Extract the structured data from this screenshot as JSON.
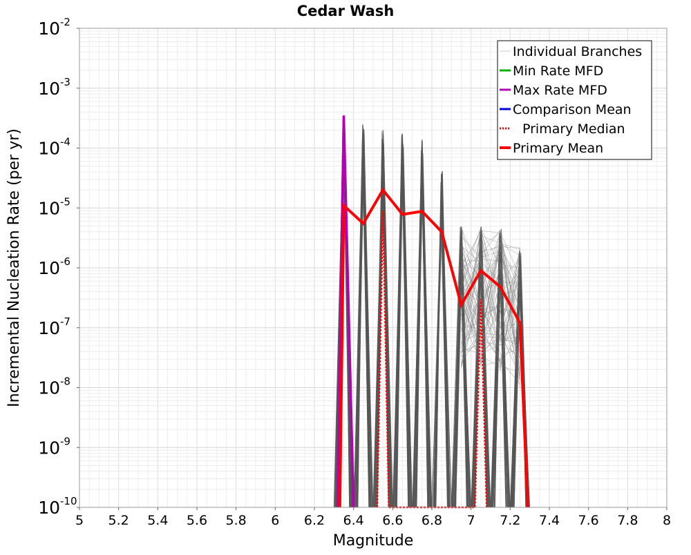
{
  "chart_data": {
    "type": "line",
    "title": "Cedar Wash",
    "xlabel": "Magnitude",
    "ylabel": "Incremental Nucleation Rate (per yr)",
    "xlim": [
      5,
      8
    ],
    "ylim": [
      1e-10,
      0.01
    ],
    "yscale": "log",
    "grid": true,
    "x_ticks": [
      "5",
      "5.2",
      "5.4",
      "5.6",
      "5.8",
      "6",
      "6.2",
      "6.4",
      "6.6",
      "6.8",
      "7",
      "7.2",
      "7.4",
      "7.6",
      "7.8",
      "8"
    ],
    "y_ticks": [
      {
        "base": "10",
        "exp": "-10"
      },
      {
        "base": "10",
        "exp": "-9"
      },
      {
        "base": "10",
        "exp": "-8"
      },
      {
        "base": "10",
        "exp": "-7"
      },
      {
        "base": "10",
        "exp": "-6"
      },
      {
        "base": "10",
        "exp": "-5"
      },
      {
        "base": "10",
        "exp": "-4"
      },
      {
        "base": "10",
        "exp": "-3"
      },
      {
        "base": "10",
        "exp": "-2"
      }
    ],
    "legend_position": "top-right",
    "legend": [
      {
        "label": "Individual Branches",
        "color": "#c8c8c8",
        "style": "solid-thin"
      },
      {
        "label": "Min Rate MFD",
        "color": "#00b400",
        "style": "solid"
      },
      {
        "label": "Max Rate MFD",
        "color": "#b400b4",
        "style": "solid"
      },
      {
        "label": "Comparison Mean",
        "color": "#0000dd",
        "style": "solid"
      },
      {
        "label": "Primary Median",
        "color": "#ff0000",
        "style": "dotted"
      },
      {
        "label": "Primary Mean",
        "color": "#ff0000",
        "style": "solid-thick"
      }
    ],
    "series": [
      {
        "name": "Primary Mean",
        "color": "#ff0000",
        "x": [
          6.33,
          6.35,
          6.45,
          6.55,
          6.65,
          6.75,
          6.85,
          6.95,
          7.05,
          7.15,
          7.25,
          7.29
        ],
        "y": [
          1e-10,
          1.1e-05,
          5.5e-06,
          2e-05,
          7.8e-06,
          8.8e-06,
          4e-06,
          2.4e-07,
          9e-07,
          4.8e-07,
          1.2e-07,
          1e-10
        ]
      },
      {
        "name": "Primary Median",
        "color": "#ff0000",
        "x": [
          6.52,
          6.55,
          6.58,
          7.02,
          7.05,
          7.08
        ],
        "y": [
          1e-10,
          9e-06,
          1e-10,
          1e-10,
          3e-07,
          1e-10
        ]
      },
      {
        "name": "Max Rate MFD",
        "color": "#b400b4",
        "x": [
          6.32,
          6.35,
          6.4
        ],
        "y": [
          1e-10,
          0.00035,
          1e-10
        ]
      },
      {
        "name": "Individual Branches",
        "color": "#555555",
        "spikes": [
          {
            "x": 6.35,
            "peak": 0.00035
          },
          {
            "x": 6.45,
            "peak": 0.00025
          },
          {
            "x": 6.55,
            "peak": 0.00025
          },
          {
            "x": 6.65,
            "peak": 0.00018
          },
          {
            "x": 6.75,
            "peak": 0.00015
          },
          {
            "x": 6.85,
            "peak": 4.2e-05
          },
          {
            "x": 6.95,
            "peak": 5e-06
          },
          {
            "x": 7.05,
            "peak": 5e-06
          },
          {
            "x": 7.15,
            "peak": 4.5e-06
          },
          {
            "x": 7.25,
            "peak": 2.3e-06
          }
        ]
      }
    ]
  }
}
